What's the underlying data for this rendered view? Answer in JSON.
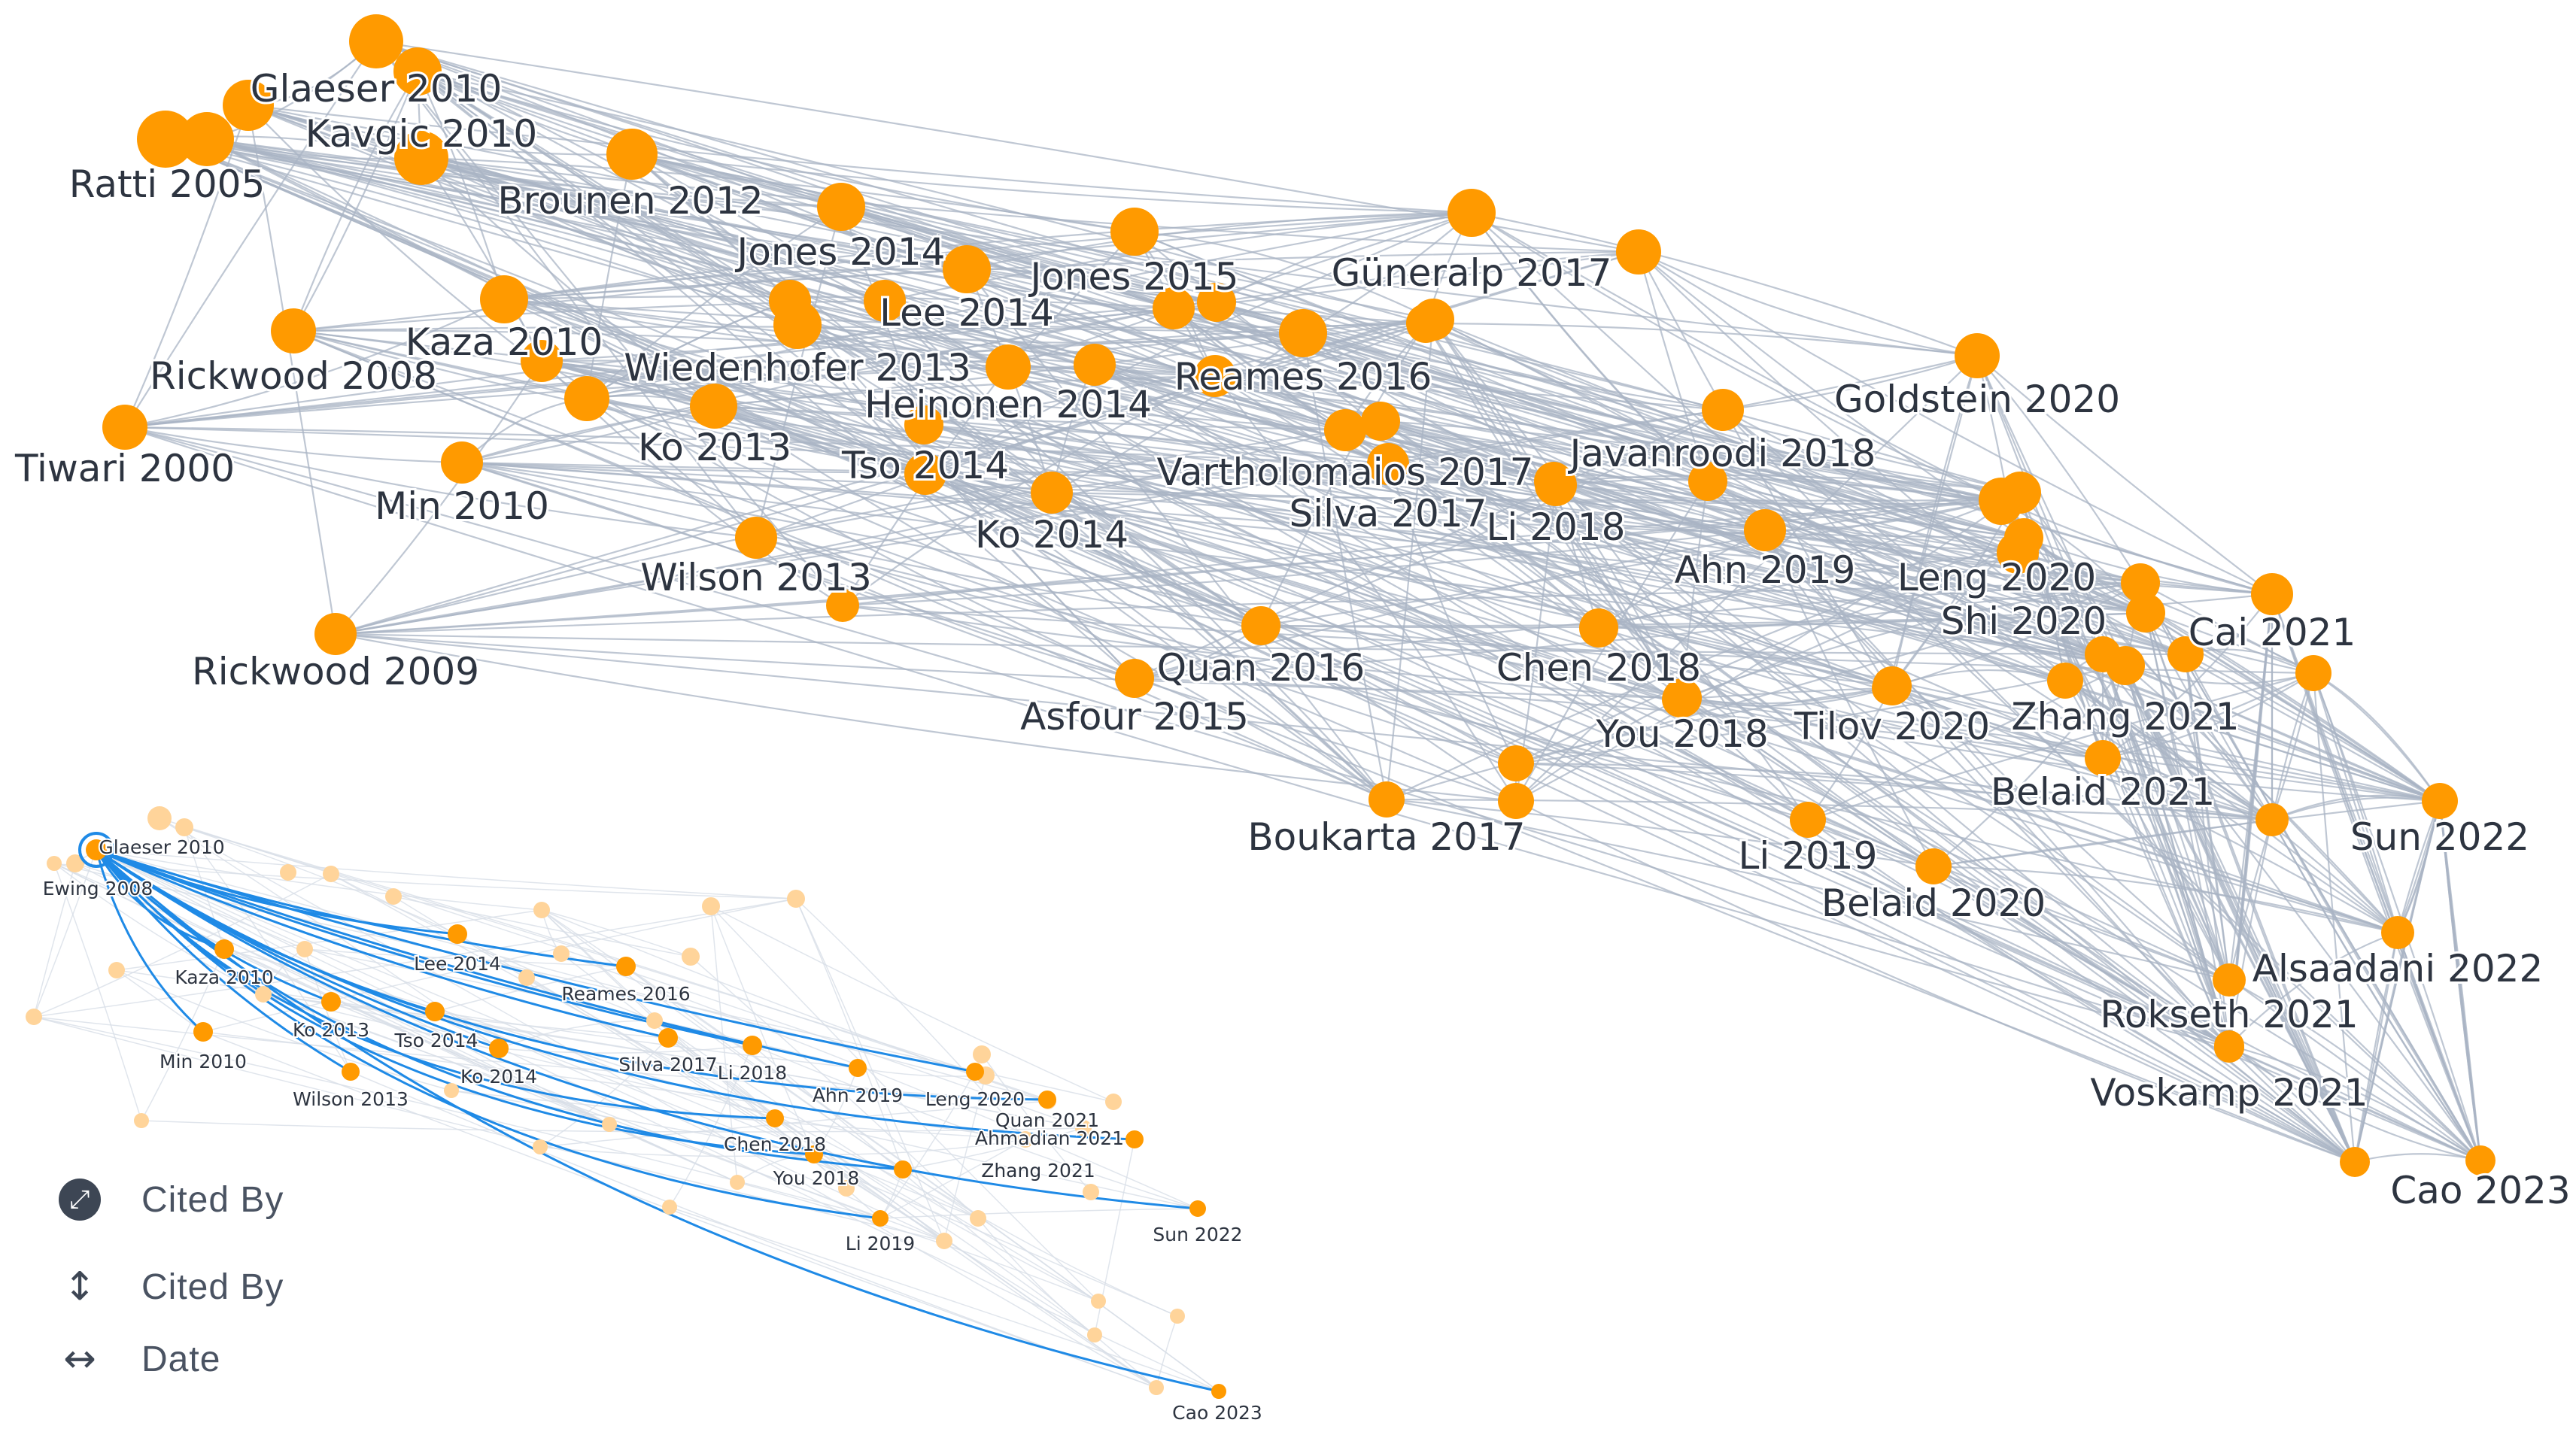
{
  "main_graph": {
    "nodes": [
      {
        "id": "ratti2005",
        "label": "Ratti 2005"
      },
      {
        "id": "glaeser2010",
        "label": "Glaeser 2010"
      },
      {
        "id": "kavgic2010",
        "label": "Kavgic 2010"
      },
      {
        "id": "brounen2012",
        "label": "Brounen 2012"
      },
      {
        "id": "jones2014",
        "label": "Jones 2014"
      },
      {
        "id": "jones2015",
        "label": "Jones 2015"
      },
      {
        "id": "guneralp2017",
        "label": "Güneralp 2017"
      },
      {
        "id": "lee2014",
        "label": "Lee 2014"
      },
      {
        "id": "kaza2010",
        "label": "Kaza 2010"
      },
      {
        "id": "rickwood2008",
        "label": "Rickwood 2008"
      },
      {
        "id": "wiedenhofer2013",
        "label": "Wiedenhofer 2013"
      },
      {
        "id": "reames2016",
        "label": "Reames 2016"
      },
      {
        "id": "heinonen2014",
        "label": "Heinonen 2014"
      },
      {
        "id": "goldstein2020",
        "label": "Goldstein 2020"
      },
      {
        "id": "tiwari2000",
        "label": "Tiwari 2000"
      },
      {
        "id": "ko2013",
        "label": "Ko 2013"
      },
      {
        "id": "javanroodi2018",
        "label": "Javanroodi 2018"
      },
      {
        "id": "tso2014",
        "label": "Tso 2014"
      },
      {
        "id": "vartholomaios2017",
        "label": "Vartholomaios 2017"
      },
      {
        "id": "min2010",
        "label": "Min 2010"
      },
      {
        "id": "silva2017",
        "label": "Silva 2017"
      },
      {
        "id": "li2018",
        "label": "Li 2018"
      },
      {
        "id": "ko2014",
        "label": "Ko 2014"
      },
      {
        "id": "ahn2019",
        "label": "Ahn 2019"
      },
      {
        "id": "leng2020",
        "label": "Leng 2020"
      },
      {
        "id": "wilson2013",
        "label": "Wilson 2013"
      },
      {
        "id": "shi2020",
        "label": "Shi 2020"
      },
      {
        "id": "cai2021",
        "label": "Cai 2021"
      },
      {
        "id": "rickwood2009",
        "label": "Rickwood 2009"
      },
      {
        "id": "quan2016",
        "label": "Quan 2016"
      },
      {
        "id": "chen2018",
        "label": "Chen 2018"
      },
      {
        "id": "asfour2015",
        "label": "Asfour 2015"
      },
      {
        "id": "you2018",
        "label": "You 2018"
      },
      {
        "id": "tilov2020",
        "label": "Tilov 2020"
      },
      {
        "id": "zhang2021",
        "label": "Zhang 2021"
      },
      {
        "id": "belaid2021",
        "label": "Belaid 2021"
      },
      {
        "id": "sun2022",
        "label": "Sun 2022"
      },
      {
        "id": "boukarta2017",
        "label": "Boukarta 2017"
      },
      {
        "id": "li2019",
        "label": "Li 2019"
      },
      {
        "id": "belaid2020",
        "label": "Belaid 2020"
      },
      {
        "id": "alsaadani2022",
        "label": "Alsaadani 2022"
      },
      {
        "id": "rokseth2021",
        "label": "Rokseth 2021"
      },
      {
        "id": "voskamp2021",
        "label": "Voskamp 2021"
      },
      {
        "id": "cao2023",
        "label": "Cao 2023"
      }
    ]
  },
  "inset_graph": {
    "nodes": [
      {
        "id": "glaeser2010",
        "label": "Glaeser 2010"
      },
      {
        "id": "ewing2008",
        "label": "Ewing 2008"
      },
      {
        "id": "lee2014",
        "label": "Lee 2014"
      },
      {
        "id": "kaza2010",
        "label": "Kaza 2010"
      },
      {
        "id": "reames2016",
        "label": "Reames 2016"
      },
      {
        "id": "ko2013",
        "label": "Ko 2013"
      },
      {
        "id": "tso2014",
        "label": "Tso 2014"
      },
      {
        "id": "min2010",
        "label": "Min 2010"
      },
      {
        "id": "silva2017",
        "label": "Silva 2017"
      },
      {
        "id": "li2018",
        "label": "Li 2018"
      },
      {
        "id": "ko2014",
        "label": "Ko 2014"
      },
      {
        "id": "ahn2019",
        "label": "Ahn 2019"
      },
      {
        "id": "leng2020",
        "label": "Leng 2020"
      },
      {
        "id": "wilson2013",
        "label": "Wilson 2013"
      },
      {
        "id": "quan2021",
        "label": "Quan 2021"
      },
      {
        "id": "ahmadian2021",
        "label": "Ahmadian 2021"
      },
      {
        "id": "chen2018",
        "label": "Chen 2018"
      },
      {
        "id": "zhang2021",
        "label": "Zhang 2021"
      },
      {
        "id": "you2018",
        "label": "You 2018"
      },
      {
        "id": "sun2022",
        "label": "Sun 2022"
      },
      {
        "id": "li2019",
        "label": "Li 2019"
      },
      {
        "id": "cao2023",
        "label": "Cao 2023"
      }
    ],
    "focus_node": "glaeser2010"
  },
  "legend": {
    "items": [
      {
        "icon": "expand-circle-icon",
        "label": "Cited By"
      },
      {
        "icon": "vertical-arrow-icon",
        "label": "Cited By"
      },
      {
        "icon": "horizontal-arrow-icon",
        "label": "Date"
      }
    ]
  },
  "colors": {
    "node": "#ff9a00",
    "node_faded": "#ffd49a",
    "edge": "#a9b4c4",
    "edge_highlight": "#1f8ae6",
    "edge_faded": "#d8dee7",
    "text": "#2d3440"
  }
}
